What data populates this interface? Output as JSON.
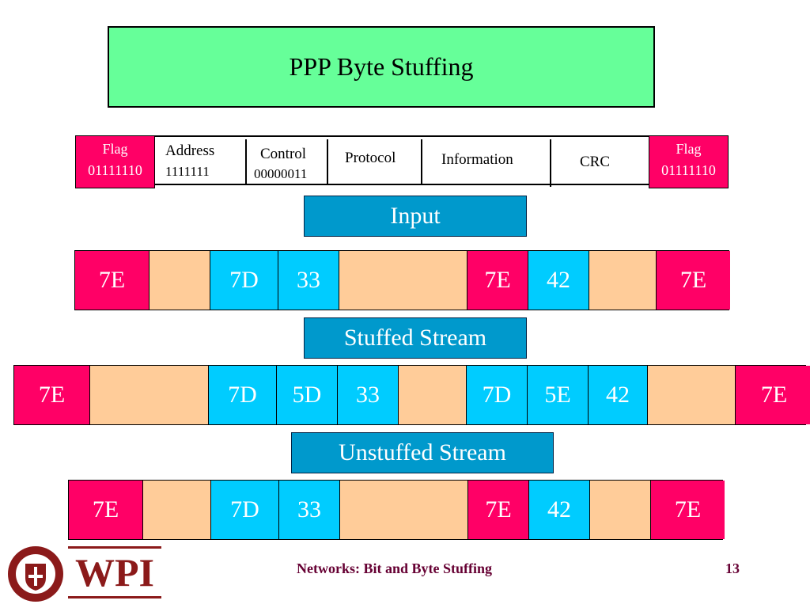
{
  "title": "PPP Byte Stuffing",
  "frame_format": {
    "flag_label": "Flag",
    "flag_value": "01111110",
    "address_label": "Address",
    "address_value": "1111111",
    "control_label": "Control",
    "control_value": "00000011",
    "protocol_label": "Protocol",
    "information_label": "Information",
    "crc_label": "CRC"
  },
  "sections": {
    "input": "Input",
    "stuffed": "Stuffed Stream",
    "unstuffed": "Unstuffed Stream"
  },
  "streams": {
    "input": [
      "7E",
      "",
      "7D",
      "33",
      "",
      "7E",
      "42",
      "",
      "7E"
    ],
    "stuffed": [
      "7E",
      "",
      "7D",
      "5D",
      "33",
      "",
      "7D",
      "5E",
      "42",
      "",
      "7E"
    ],
    "unstuffed": [
      "7E",
      "",
      "7D",
      "33",
      "",
      "7E",
      "42",
      "",
      "7E"
    ]
  },
  "footer": {
    "logo_text": "WPI",
    "logo_ring_text": "WORCESTER POLYTECHNIC INSTITUTE 1865",
    "course": "Networks: Bit and Byte Stuffing",
    "page": "13"
  },
  "colors": {
    "flag": "#ff0066",
    "data": "#ffcc99",
    "escape": "#00ccff",
    "label": "#0099cc",
    "title_bg": "#66ff99",
    "brand": "#8b1a1a"
  }
}
